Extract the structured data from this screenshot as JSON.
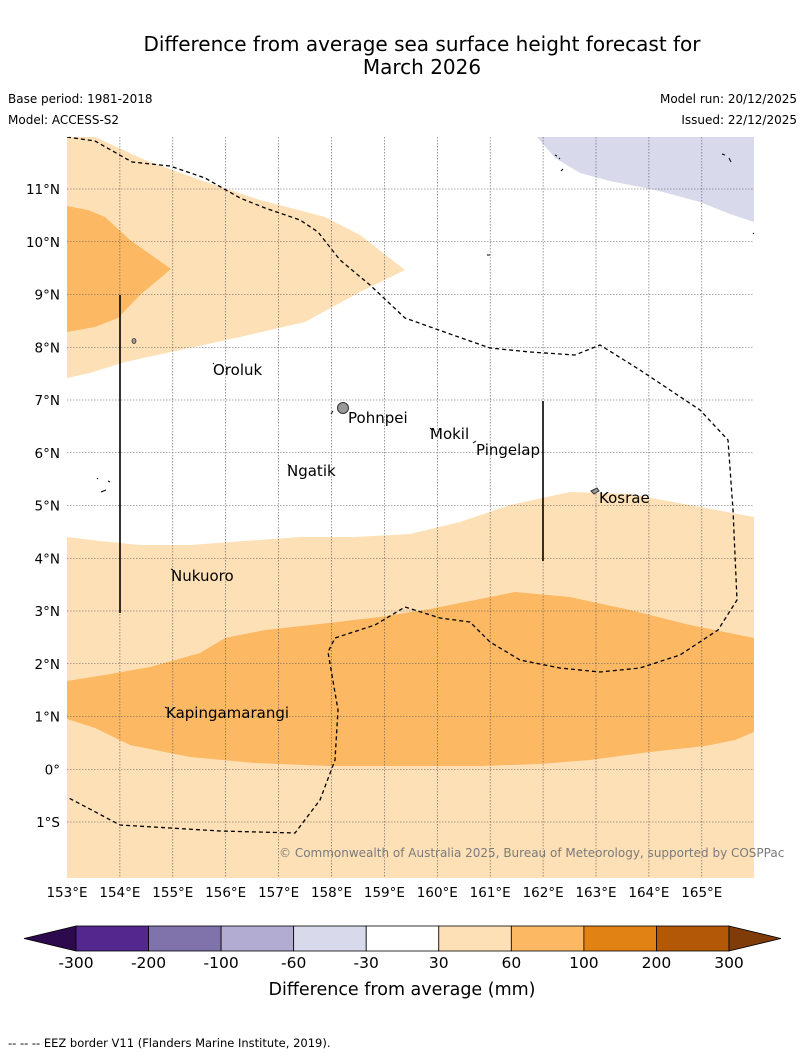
{
  "header": {
    "title_line1": "Difference from average sea surface height forecast for",
    "title_line2": "March 2026",
    "base_period": "Base period: 1981-2018",
    "model": "Model: ACCESS-S2",
    "model_run": "Model run: 20/12/2025",
    "issued": "Issued: 22/12/2025"
  },
  "map": {
    "lat_labels": [
      "11°N",
      "10°N",
      "9°N",
      "8°N",
      "7°N",
      "6°N",
      "5°N",
      "4°N",
      "3°N",
      "2°N",
      "1°N",
      "0°",
      "1°S"
    ],
    "lon_labels": [
      "153°E",
      "154°E",
      "155°E",
      "156°E",
      "157°E",
      "158°E",
      "159°E",
      "160°E",
      "161°E",
      "162°E",
      "163°E",
      "164°E",
      "165°E"
    ],
    "places": [
      "Oroluk",
      "Pohnpei",
      "Mokil",
      "Pingelap",
      "Ngatik",
      "Kosrae",
      "Nukuoro",
      "Kapingamarangi"
    ],
    "copyright": "© Commonwealth of Australia 2025, Bureau of Meteorology, supported by COSPPac"
  },
  "colorbar": {
    "ticks": [
      "-300",
      "-200",
      "-100",
      "-60",
      "-30",
      "30",
      "60",
      "100",
      "200",
      "300"
    ],
    "label": "Difference from average (mm)",
    "colors": [
      "#2d0a4e",
      "#54278f",
      "#8073ac",
      "#b2abd2",
      "#d8daeb",
      "#ffffff",
      "#fee0b6",
      "#fdb863",
      "#e08214",
      "#b35806",
      "#7f3b08"
    ]
  },
  "footnote": "--  --  -- EEZ border V11 (Flanders Marine Institute, 2019)."
}
